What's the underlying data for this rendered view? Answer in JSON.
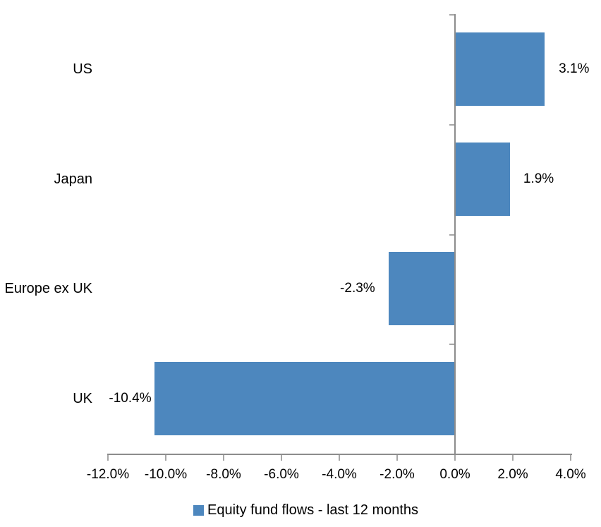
{
  "chart_data": {
    "type": "bar",
    "orientation": "horizontal",
    "title": "",
    "xlabel": "",
    "ylabel": "",
    "categories": [
      "US",
      "Japan",
      "Europe ex UK",
      "UK"
    ],
    "values": [
      3.1,
      1.9,
      -2.3,
      -10.4
    ],
    "data_labels": [
      "3.1%",
      "1.9%",
      "-2.3%",
      "-10.4%"
    ],
    "series": [
      {
        "name": "Equity fund flows - last 12 months",
        "values": [
          3.1,
          1.9,
          -2.3,
          -10.4
        ]
      }
    ],
    "xlim": [
      -12,
      4
    ],
    "x_tick_values": [
      -12,
      -10,
      -8,
      -6,
      -4,
      -2,
      0,
      2,
      4
    ],
    "x_tick_labels": [
      "-12.0%",
      "-10.0%",
      "-8.0%",
      "-6.0%",
      "-4.0%",
      "-2.0%",
      "0.0%",
      "2.0%",
      "4.0%"
    ],
    "grid": false,
    "legend_position": "bottom",
    "colors": {
      "bar": "#4D87BE",
      "axis_line": "#8C8C8C",
      "tick_mark": "#A6A6A6",
      "text": "#000000",
      "background": "#FFFFFF"
    }
  },
  "legend": {
    "label": "Equity fund flows - last 12 months",
    "swatch_color": "#4D87BE"
  }
}
